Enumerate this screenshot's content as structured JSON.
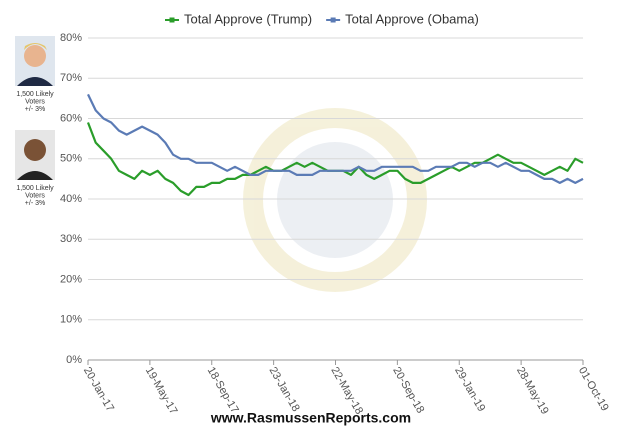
{
  "chart_data": {
    "type": "line",
    "categories": [
      "20-Jan-17",
      null,
      null,
      null,
      null,
      null,
      null,
      null,
      "19-May-17",
      null,
      null,
      null,
      null,
      null,
      null,
      null,
      "18-Sep-17",
      null,
      null,
      null,
      null,
      null,
      null,
      null,
      "23-Jan-18",
      null,
      null,
      null,
      null,
      null,
      null,
      null,
      "22-May-18",
      null,
      null,
      null,
      null,
      null,
      null,
      null,
      "20-Sep-18",
      null,
      null,
      null,
      null,
      null,
      null,
      null,
      "29-Jan-19",
      null,
      null,
      null,
      null,
      null,
      null,
      null,
      "28-May-19",
      null,
      null,
      null,
      null,
      null,
      null,
      null,
      "01-Oct-19"
    ],
    "series": [
      {
        "name": "Total Approve (Trump)",
        "color": "#2a9d2a",
        "values": [
          59,
          54,
          52,
          50,
          47,
          46,
          45,
          47,
          46,
          47,
          45,
          44,
          42,
          41,
          43,
          43,
          44,
          44,
          45,
          45,
          46,
          46,
          47,
          48,
          47,
          47,
          48,
          49,
          48,
          49,
          48,
          47,
          47,
          47,
          46,
          48,
          46,
          45,
          46,
          47,
          47,
          45,
          44,
          44,
          45,
          46,
          47,
          48,
          47,
          48,
          49,
          49,
          50,
          51,
          50,
          49,
          49,
          48,
          47,
          46,
          47,
          48,
          47,
          50,
          49
        ]
      },
      {
        "name": "Total Approve (Obama)",
        "color": "#5b7bb5",
        "values": [
          66,
          62,
          60,
          59,
          57,
          56,
          57,
          58,
          57,
          56,
          54,
          51,
          50,
          50,
          49,
          49,
          49,
          48,
          47,
          48,
          47,
          46,
          46,
          47,
          47,
          47,
          47,
          46,
          46,
          46,
          47,
          47,
          47,
          47,
          47,
          48,
          47,
          47,
          48,
          48,
          48,
          48,
          48,
          47,
          47,
          48,
          48,
          48,
          49,
          49,
          48,
          49,
          49,
          48,
          49,
          48,
          47,
          47,
          46,
          45,
          45,
          44,
          45,
          44,
          45
        ]
      }
    ],
    "ylim": [
      0,
      80
    ],
    "yticks": [
      {
        "value": 0,
        "label": "0%"
      },
      {
        "value": 10,
        "label": "10%"
      },
      {
        "value": 20,
        "label": "20%"
      },
      {
        "value": 30,
        "label": "30%"
      },
      {
        "value": 40,
        "label": "40%"
      },
      {
        "value": 50,
        "label": "50%"
      },
      {
        "value": 60,
        "label": "60%"
      },
      {
        "value": 70,
        "label": "70%"
      },
      {
        "value": 80,
        "label": "80%"
      }
    ],
    "grid": true,
    "legend": "top"
  },
  "sidebar": [
    {
      "caption": [
        "1,500 Likely",
        "Voters",
        "+/- 3%"
      ]
    },
    {
      "caption": [
        "1,500 Likely",
        "Voters",
        "+/- 3%"
      ]
    }
  ],
  "footer": "www.RasmussenReports.com"
}
